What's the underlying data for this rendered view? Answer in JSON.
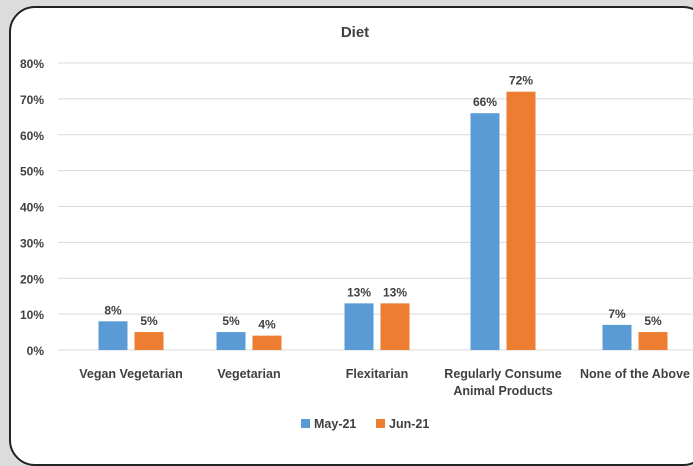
{
  "chart_data": {
    "type": "bar",
    "title": "Diet",
    "categories": [
      [
        "Vegan Vegetarian"
      ],
      [
        "Vegetarian"
      ],
      [
        "Flexitarian"
      ],
      [
        "Regularly Consume",
        "Animal Products"
      ],
      [
        "None of the Above"
      ]
    ],
    "series": [
      {
        "name": "May-21",
        "color": "#5b9bd5",
        "values": [
          8,
          5,
          13,
          66,
          7
        ]
      },
      {
        "name": "Jun-21",
        "color": "#ed7d31",
        "values": [
          5,
          4,
          13,
          72,
          5
        ]
      }
    ],
    "value_suffix": "%",
    "yticks": [
      "0%",
      "10%",
      "20%",
      "30%",
      "40%",
      "50%",
      "60%",
      "70%",
      "80%"
    ],
    "ylim": [
      0,
      80
    ],
    "grid": true,
    "gridline_color": "#d9d9d9",
    "legend_position": "bottom"
  }
}
